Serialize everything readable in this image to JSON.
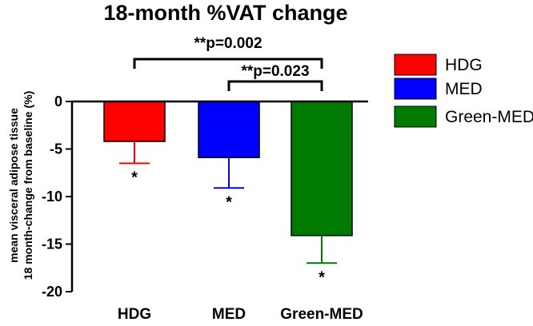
{
  "chart_data": {
    "type": "bar",
    "title": "18-month %VAT change",
    "ylabel_line1": "mean visceral adipose tissue",
    "ylabel_line2": "18 month-change from baseline (%)",
    "xlabel": "",
    "categories": [
      "HDG",
      "MED",
      "Green-MED"
    ],
    "values": [
      -4.2,
      -5.9,
      -14.1
    ],
    "errors": [
      2.3,
      3.2,
      2.9
    ],
    "markers": [
      "*",
      "*",
      "*"
    ],
    "colors": [
      "#ff0000",
      "#0000ff",
      "#007a00"
    ],
    "ylim": [
      -20,
      0
    ],
    "yticks": [
      0,
      -5,
      -10,
      -15,
      -20
    ],
    "ytick_labels": [
      "0",
      "-5",
      "-10",
      "-15",
      "-20"
    ],
    "legend": {
      "position": "right",
      "items": [
        {
          "label": "HDG",
          "color": "#ff0000"
        },
        {
          "label": "MED",
          "color": "#0000ff"
        },
        {
          "label": "Green-MED",
          "color": "#007a00"
        }
      ]
    },
    "significance": [
      {
        "from": "HDG",
        "to": "Green-MED",
        "label": "**p=0.002"
      },
      {
        "from": "MED",
        "to": "Green-MED",
        "label": "**p=0.023"
      }
    ]
  }
}
